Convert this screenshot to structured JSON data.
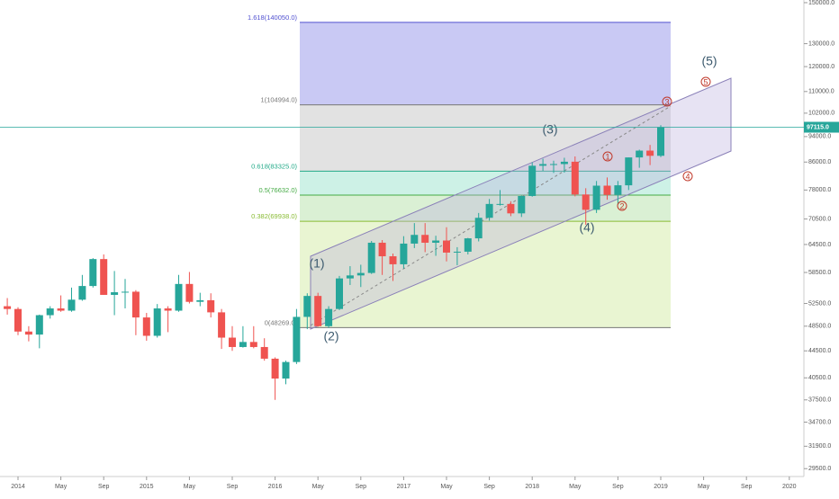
{
  "chart_data": {
    "type": "candlestick",
    "log_scale": true,
    "grid": false,
    "up_color": "#26a69a",
    "down_color": "#ef5350",
    "x": [
      "2013-12",
      "2014-01",
      "2014-02",
      "2014-03",
      "2014-04",
      "2014-05",
      "2014-06",
      "2014-07",
      "2014-08",
      "2014-09",
      "2014-10",
      "2014-11",
      "2014-12",
      "2015-01",
      "2015-02",
      "2015-03",
      "2015-04",
      "2015-05",
      "2015-06",
      "2015-07",
      "2015-08",
      "2015-09",
      "2015-10",
      "2015-11",
      "2015-12",
      "2016-01",
      "2016-02",
      "2016-03",
      "2016-04",
      "2016-05",
      "2016-06",
      "2016-07",
      "2016-08",
      "2016-09",
      "2016-10",
      "2016-11",
      "2016-12",
      "2017-01",
      "2017-02",
      "2017-03",
      "2017-04",
      "2017-05",
      "2017-06",
      "2017-07",
      "2017-08",
      "2017-09",
      "2017-10",
      "2017-11",
      "2017-12",
      "2018-01",
      "2018-02",
      "2018-03",
      "2018-04",
      "2018-05",
      "2018-06",
      "2018-07",
      "2018-08",
      "2018-09",
      "2018-10",
      "2018-11",
      "2018-12",
      "2019-01"
    ],
    "open": [
      52000,
      51500,
      47600,
      47100,
      50400,
      51600,
      51200,
      53200,
      55800,
      61300,
      54100,
      54600,
      54700,
      50000,
      46900,
      51600,
      51200,
      56200,
      52800,
      53100,
      50900,
      46600,
      45100,
      45900,
      45100,
      43300,
      40400,
      42800,
      50100,
      53900,
      48500,
      51500,
      57300,
      57900,
      58400,
      64900,
      61900,
      60200,
      64700,
      66700,
      64900,
      65400,
      62700,
      62900,
      65900,
      70800,
      74300,
      74300,
      71900,
      76400,
      84900,
      85400,
      85400,
      86100,
      76800,
      72800,
      79200,
      76700,
      79300,
      87400,
      89500,
      87900
    ],
    "high": [
      53500,
      51800,
      48500,
      50500,
      52000,
      54000,
      55500,
      58000,
      61500,
      62300,
      58800,
      57200,
      55000,
      50800,
      52400,
      52000,
      58000,
      58600,
      54500,
      54400,
      51500,
      48500,
      48500,
      48500,
      46500,
      43500,
      43000,
      51500,
      54400,
      54500,
      52000,
      57800,
      59800,
      60100,
      65300,
      65500,
      62500,
      66400,
      69500,
      69500,
      66500,
      68500,
      63900,
      66000,
      72000,
      75600,
      78000,
      75000,
      76500,
      85900,
      87000,
      86400,
      87300,
      87700,
      78500,
      80500,
      81500,
      80500,
      87400,
      89800,
      91300,
      97800
    ],
    "low": [
      50500,
      47000,
      46000,
      44900,
      49800,
      51000,
      51000,
      53000,
      55500,
      54100,
      50400,
      51600,
      47000,
      46100,
      46600,
      47500,
      51000,
      52500,
      52000,
      50000,
      44800,
      44500,
      45000,
      44900,
      43000,
      37500,
      39600,
      42500,
      48000,
      48400,
      48200,
      51300,
      56000,
      55600,
      58200,
      58000,
      56800,
      59300,
      63700,
      62800,
      62000,
      60800,
      60000,
      62300,
      65200,
      70100,
      73900,
      71200,
      71000,
      76200,
      83400,
      82800,
      82900,
      76300,
      69100,
      72000,
      75400,
      74100,
      78000,
      84300,
      85100,
      87500
    ],
    "close": [
      51500,
      47600,
      47100,
      50400,
      51600,
      51200,
      53200,
      55800,
      61300,
      54100,
      54600,
      54700,
      50000,
      46900,
      51600,
      51200,
      56200,
      52800,
      53100,
      50900,
      46600,
      45100,
      45900,
      45100,
      43300,
      40400,
      42800,
      50100,
      53900,
      48500,
      51500,
      57300,
      57900,
      58400,
      64900,
      61900,
      60200,
      64700,
      66700,
      64900,
      65400,
      62700,
      62900,
      65900,
      70800,
      74300,
      74300,
      71900,
      76400,
      84900,
      85400,
      85400,
      86100,
      76800,
      72800,
      79200,
      76700,
      79300,
      87400,
      89500,
      87900,
      97100
    ],
    "ylim": [
      28700,
      151400
    ],
    "yticks": [
      {
        "value": 150000,
        "label": "150000.0"
      },
      {
        "value": 130000,
        "label": "130000.0"
      },
      {
        "value": 120000,
        "label": "120000.0"
      },
      {
        "value": 110000,
        "label": "110000.0"
      },
      {
        "value": 102000,
        "label": "102000.0"
      },
      {
        "value": 94000,
        "label": "94000.0"
      },
      {
        "value": 86000,
        "label": "86000.0"
      },
      {
        "value": 78000,
        "label": "78000.0"
      },
      {
        "value": 70500,
        "label": "70500.0"
      },
      {
        "value": 64500,
        "label": "64500.0"
      },
      {
        "value": 58500,
        "label": "58500.0"
      },
      {
        "value": 52500,
        "label": "52500.0"
      },
      {
        "value": 48500,
        "label": "48500.0"
      },
      {
        "value": 44500,
        "label": "44500.0"
      },
      {
        "value": 40500,
        "label": "40500.0"
      },
      {
        "value": 37500,
        "label": "37500.0"
      },
      {
        "value": 34700,
        "label": "34700.0"
      },
      {
        "value": 31900,
        "label": "31900.0"
      },
      {
        "value": 29500,
        "label": "29500.0"
      }
    ],
    "xticks": [
      {
        "value": "2014-01",
        "label": "2014"
      },
      {
        "value": "2014-05",
        "label": "May"
      },
      {
        "value": "2014-09",
        "label": "Sep"
      },
      {
        "value": "2015-01",
        "label": "2015"
      },
      {
        "value": "2015-05",
        "label": "May"
      },
      {
        "value": "2015-09",
        "label": "Sep"
      },
      {
        "value": "2016-01",
        "label": "2016"
      },
      {
        "value": "2016-05",
        "label": "May"
      },
      {
        "value": "2016-09",
        "label": "Sep"
      },
      {
        "value": "2017-01",
        "label": "2017"
      },
      {
        "value": "2017-05",
        "label": "May"
      },
      {
        "value": "2017-09",
        "label": "Sep"
      },
      {
        "value": "2018-01",
        "label": "2018"
      },
      {
        "value": "2018-05",
        "label": "May"
      },
      {
        "value": "2018-09",
        "label": "Sep"
      },
      {
        "value": "2019-01",
        "label": "2019"
      },
      {
        "value": "2019-05",
        "label": "May"
      },
      {
        "value": "2019-09",
        "label": "Sep"
      },
      {
        "value": "2020-01",
        "label": "2020"
      }
    ],
    "current_price": {
      "value": 97115,
      "label": "97115.0",
      "color": "#26a69a"
    },
    "fib_levels": [
      {
        "label": "1.618(140050.0)",
        "price": 140050,
        "color": "#5050d0",
        "fill": "#c9c9f4"
      },
      {
        "label": "1(104994.0)",
        "price": 104994,
        "color": "#777777",
        "fill": "#e2e2e2"
      },
      {
        "label": "0.618(83325.0)",
        "price": 83325,
        "color": "#22aa88",
        "fill": "#cdf1e6"
      },
      {
        "label": "0.5(76632.0)",
        "price": 76632,
        "color": "#44aa44",
        "fill": "#daf0d4"
      },
      {
        "label": "0.382(69938.0)",
        "price": 69938,
        "color": "#88bb33",
        "fill": "#e9f5d2"
      },
      {
        "label": "0(48269.0)",
        "price": 48269,
        "color": "#777777",
        "fill": "none"
      }
    ],
    "wave_labels": [
      "(1)",
      "(2)",
      "(3)",
      "(4)",
      "(5)"
    ],
    "sub_wave_labels": [
      "1",
      "2",
      "3",
      "4",
      "5"
    ]
  }
}
